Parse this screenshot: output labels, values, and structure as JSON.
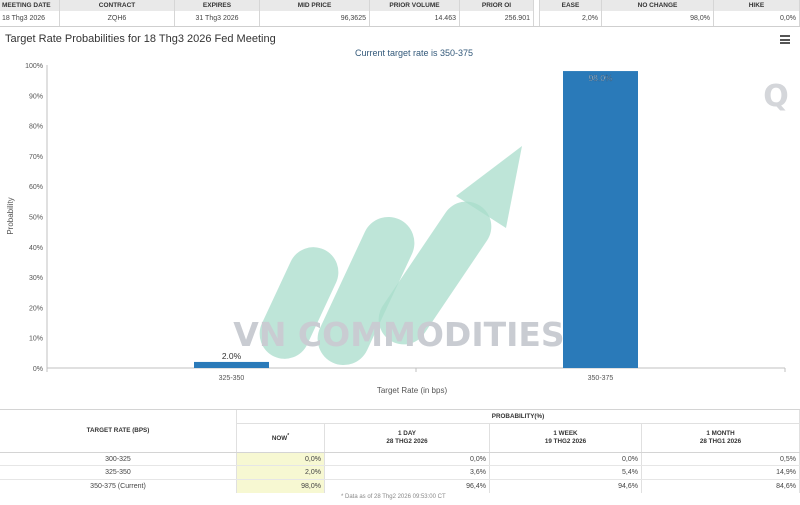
{
  "contract_table": {
    "headers": [
      "MEETING DATE",
      "CONTRACT",
      "EXPIRES",
      "MID PRICE",
      "PRIOR VOLUME",
      "PRIOR OI",
      "EASE",
      "NO CHANGE",
      "HIKE"
    ],
    "values": [
      "18 Thg3 2026",
      "ZQH6",
      "31 Thg3 2026",
      "96,3625",
      "14.463",
      "256.901",
      "2,0%",
      "98,0%",
      "0,0%"
    ]
  },
  "chart_title": "Target Rate Probabilities for 18 Thg3 2026 Fed Meeting",
  "menu_icon": "hamburger-menu-icon",
  "watermark": {
    "text": "VN COMMODITIES",
    "logo_letter": "Q",
    "colors": {
      "stripes": "#a8dccb",
      "text": "#c9ccd2"
    }
  },
  "chart_data": {
    "type": "bar",
    "title": "Current target rate is 350-375",
    "xlabel": "Target Rate (in bps)",
    "ylabel": "Probability",
    "categories": [
      "325-350",
      "350-375"
    ],
    "values": [
      2.0,
      98.0
    ],
    "data_labels": [
      "2.0%",
      "98.0%"
    ],
    "ylim": [
      0,
      100
    ],
    "yticks": [
      "0%",
      "10%",
      "20%",
      "30%",
      "40%",
      "50%",
      "60%",
      "70%",
      "80%",
      "90%",
      "100%"
    ],
    "grid": false,
    "colors": {
      "bar": "#2a7ab9",
      "subtitle": "#33597a"
    }
  },
  "probability_table": {
    "col_target": "TARGET RATE (BPS)",
    "group_header": "PROBABILITY(%)",
    "now": {
      "label": "NOW",
      "mark": "*"
    },
    "periods": [
      {
        "label": "1 DAY",
        "date": "28 THG2 2026"
      },
      {
        "label": "1 WEEK",
        "date": "19 THG2 2026"
      },
      {
        "label": "1 MONTH",
        "date": "28 THG1 2026"
      }
    ],
    "rows": [
      {
        "rate": "300-325",
        "now": "0,0%",
        "day": "0,0%",
        "week": "0,0%",
        "month": "0,5%"
      },
      {
        "rate": "325-350",
        "now": "2,0%",
        "day": "3,6%",
        "week": "5,4%",
        "month": "14,9%"
      },
      {
        "rate": "350-375 (Current)",
        "now": "98,0%",
        "day": "96,4%",
        "week": "94,6%",
        "month": "84,6%"
      }
    ],
    "footnote": "* Data as of 28 Thg2 2026 09:53:00 CT"
  }
}
